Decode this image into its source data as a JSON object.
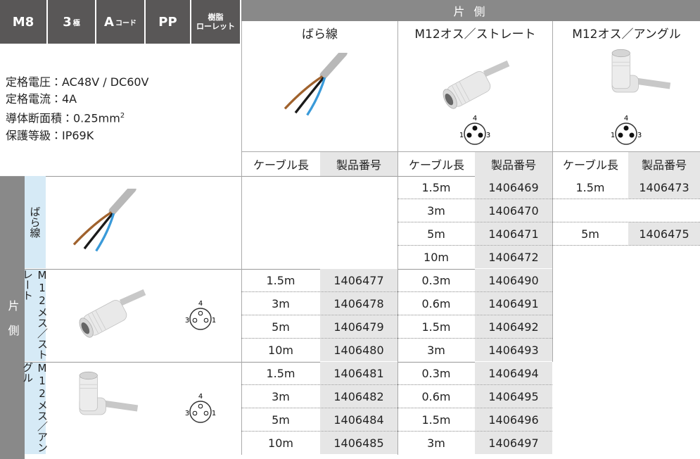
{
  "header": {
    "badges": [
      {
        "main": "M8"
      },
      {
        "main": "3",
        "sub": "極"
      },
      {
        "main": "A",
        "sub": "コード"
      },
      {
        "main": "PP"
      },
      {
        "lines": [
          "樹脂",
          "ローレット"
        ]
      }
    ],
    "group": "片 側",
    "columns": [
      {
        "name": "ばら線"
      },
      {
        "name": "M12オス／ストレート",
        "pins": {
          "top": "4",
          "left": "1",
          "right": "3"
        }
      },
      {
        "name": "M12オス／アングル",
        "pins": {
          "top": "4",
          "left": "1",
          "right": "3"
        }
      }
    ],
    "sub_headers": [
      "ケーブル長",
      "製品番号"
    ]
  },
  "specs": [
    {
      "text": "定格電圧：AC48V / DC60V"
    },
    {
      "text": "定格電流：4A"
    },
    {
      "text": "導体断面積：0.25mm",
      "sup": "2"
    },
    {
      "text": "保護等級：IP69K"
    }
  ],
  "table": {
    "side": "片 側",
    "groups": [
      {
        "name": "ばら線",
        "rows": [
          [
            null,
            [
              "1.5m",
              "1406469"
            ],
            [
              "1.5m",
              "1406473"
            ]
          ],
          [
            null,
            [
              "3m",
              "1406470"
            ],
            null
          ],
          [
            null,
            [
              "5m",
              "1406471"
            ],
            [
              "5m",
              "1406475"
            ]
          ],
          [
            null,
            [
              "10m",
              "1406472"
            ],
            null
          ]
        ]
      },
      {
        "name": "M12メス／ストレート",
        "pins": {
          "top": "4",
          "left": "3",
          "right": "1"
        },
        "rows": [
          [
            [
              "1.5m",
              "1406477"
            ],
            [
              "0.3m",
              "1406490"
            ],
            null
          ],
          [
            [
              "3m",
              "1406478"
            ],
            [
              "0.6m",
              "1406491"
            ],
            null
          ],
          [
            [
              "5m",
              "1406479"
            ],
            [
              "1.5m",
              "1406492"
            ],
            null
          ],
          [
            [
              "10m",
              "1406480"
            ],
            [
              "3m",
              "1406493"
            ],
            null
          ]
        ]
      },
      {
        "name": "M12メス／アングル",
        "pins": {
          "top": "4",
          "left": "3",
          "right": "1"
        },
        "rows": [
          [
            [
              "1.5m",
              "1406481"
            ],
            [
              "0.3m",
              "1406494"
            ],
            null
          ],
          [
            [
              "3m",
              "1406482"
            ],
            [
              "0.6m",
              "1406495"
            ],
            null
          ],
          [
            [
              "5m",
              "1406484"
            ],
            [
              "1.5m",
              "1406496"
            ],
            null
          ],
          [
            [
              "10m",
              "1406485"
            ],
            [
              "3m",
              "1406497"
            ],
            null
          ]
        ]
      }
    ]
  }
}
